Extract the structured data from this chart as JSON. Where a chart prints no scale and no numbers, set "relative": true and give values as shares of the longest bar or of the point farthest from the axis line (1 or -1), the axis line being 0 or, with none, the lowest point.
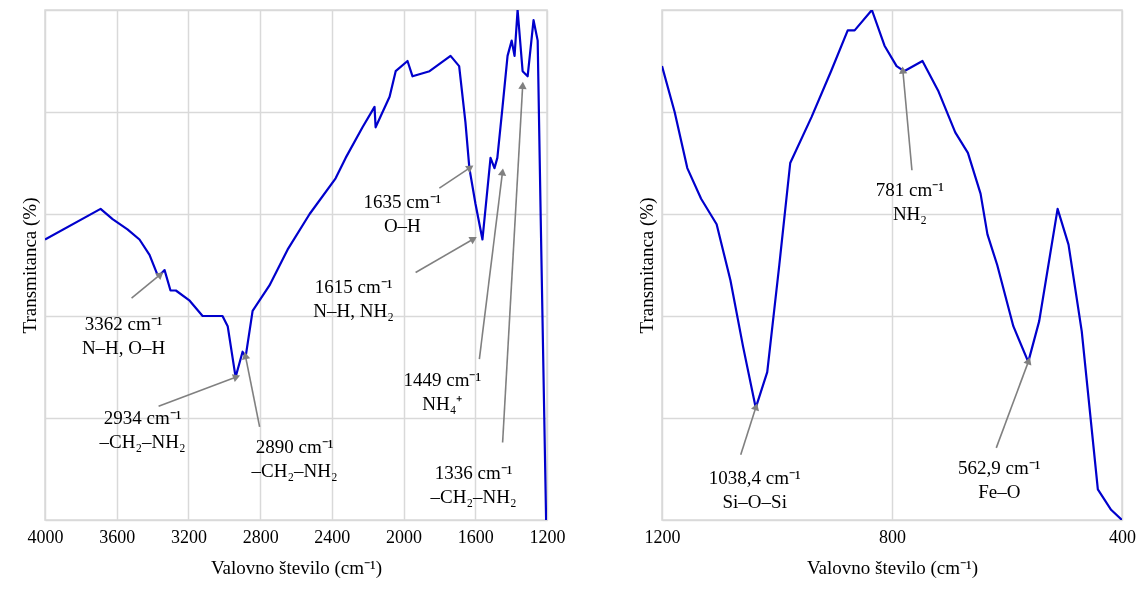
{
  "chart_data": [
    {
      "type": "line",
      "relative": true,
      "xlabel": "Valovno število (cm⁻¹)",
      "ylabel": "Transmitanca (%)",
      "xlim": [
        4000,
        1200
      ],
      "xticks": [
        4000,
        3600,
        3200,
        2800,
        2400,
        2000,
        1600,
        1200
      ],
      "grid": true,
      "x": [
        4000,
        3690,
        3623,
        3540,
        3473,
        3417,
        3372,
        3361,
        3333,
        3300,
        3270,
        3193,
        3121,
        3010,
        2981,
        2937,
        2898,
        2881,
        2842,
        2748,
        2647,
        2524,
        2379,
        2323,
        2229,
        2162,
        2156,
        2078,
        2044,
        1978,
        1950,
        1855,
        1738,
        1690,
        1655,
        1633,
        1599,
        1560,
        1515,
        1493,
        1477,
        1448,
        1420,
        1397,
        1381,
        1364,
        1336,
        1308,
        1275,
        1252,
        1235,
        1205
      ],
      "series": [
        {
          "color": "#0000cc",
          "values": [
            0.55,
            0.61,
            0.59,
            0.57,
            0.55,
            0.52,
            0.48,
            0.48,
            0.49,
            0.45,
            0.45,
            0.43,
            0.4,
            0.4,
            0.38,
            0.28,
            0.33,
            0.32,
            0.41,
            0.46,
            0.53,
            0.6,
            0.67,
            0.71,
            0.77,
            0.81,
            0.77,
            0.83,
            0.88,
            0.9,
            0.87,
            0.88,
            0.91,
            0.89,
            0.78,
            0.69,
            0.62,
            0.55,
            0.71,
            0.69,
            0.71,
            0.81,
            0.91,
            0.94,
            0.91,
            1.0,
            0.88,
            0.87,
            0.98,
            0.94,
            0.59,
            0
          ]
        }
      ],
      "annotations": [
        {
          "text": "3362 cm⁻¹\nN–H, O–H",
          "x": 3361,
          "y": 0.48
        },
        {
          "text": "2934 cm⁻¹\n–CH₂–NH₂",
          "x": 2937,
          "y": 0.28
        },
        {
          "text": "2890 cm⁻¹\n–CH₂–NH₂",
          "x": 2881,
          "y": 0.32
        },
        {
          "text": "1635 cm⁻¹\nO–H",
          "x": 1633,
          "y": 0.69
        },
        {
          "text": "1615 cm⁻¹\nN–H, NH₂",
          "x": 1615,
          "y": 0.55
        },
        {
          "text": "1449 cm⁻¹\nNH₄⁺",
          "x": 1449,
          "y": 0.68
        },
        {
          "text": "1336 cm⁻¹\n–CH₂–NH₂",
          "x": 1336,
          "y": 0.85
        }
      ]
    },
    {
      "type": "line",
      "relative": true,
      "xlabel": "Valovno število (cm⁻¹)",
      "ylabel": "Transmitanca (%)",
      "xlim": [
        1200,
        400
      ],
      "xticks": [
        1200,
        800,
        400
      ],
      "grid": true,
      "x": [
        1200,
        1178,
        1156,
        1132,
        1105,
        1081,
        1059,
        1037,
        1017,
        996,
        977,
        940,
        906,
        877,
        865,
        835,
        813,
        792,
        779,
        747,
        719,
        690,
        668,
        646,
        634,
        617,
        589,
        563,
        544,
        512,
        493,
        470,
        442,
        419,
        400
      ],
      "series": [
        {
          "color": "#0000cc",
          "values": [
            0.89,
            0.8,
            0.69,
            0.63,
            0.58,
            0.47,
            0.34,
            0.22,
            0.29,
            0.5,
            0.7,
            0.79,
            0.88,
            0.96,
            0.96,
            1.0,
            0.93,
            0.89,
            0.88,
            0.9,
            0.84,
            0.76,
            0.72,
            0.64,
            0.56,
            0.5,
            0.38,
            0.31,
            0.39,
            0.61,
            0.54,
            0.37,
            0.06,
            0.02,
            0
          ]
        }
      ],
      "annotations": [
        {
          "text": "1038,4 cm⁻¹\nSi–O–Si",
          "x": 1037,
          "y": 0.22
        },
        {
          "text": "781 cm⁻¹\nNH₂",
          "x": 781,
          "y": 0.88
        },
        {
          "text": "562,9 cm⁻¹\nFe–O",
          "x": 563,
          "y": 0.31
        }
      ]
    }
  ]
}
